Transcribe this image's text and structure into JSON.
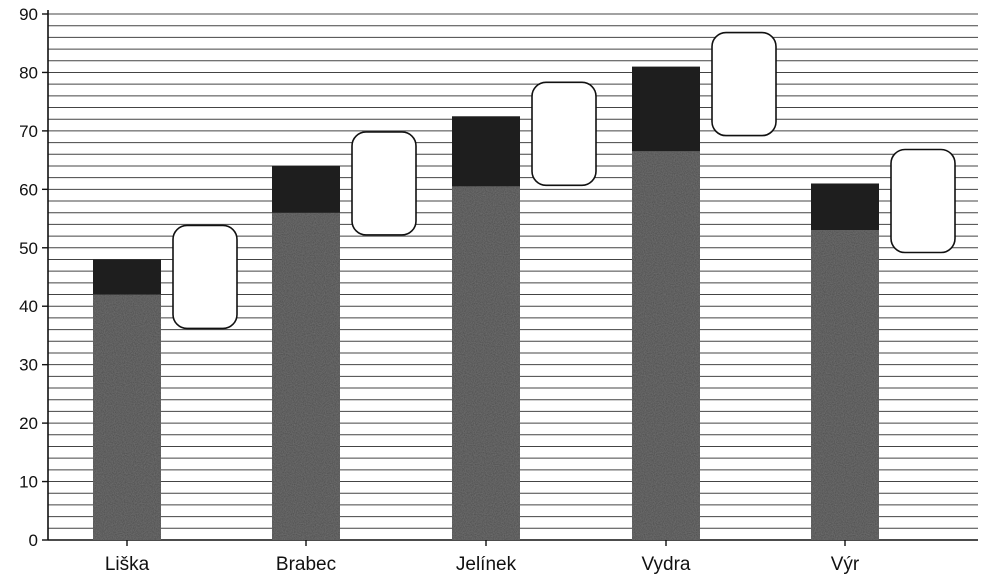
{
  "chart_data": {
    "type": "bar",
    "stacked": true,
    "categories": [
      "Liška",
      "Brabec",
      "Jelínek",
      "Vydra",
      "Výr"
    ],
    "series": [
      {
        "values": [
          42,
          56,
          60.5,
          66.5,
          53
        ],
        "color": "#4a4a4a"
      },
      {
        "values": [
          6,
          8,
          12,
          14.5,
          8
        ],
        "color": "#1e1e1e"
      }
    ],
    "totals": [
      48,
      64,
      72.5,
      81,
      61
    ],
    "blank_label_boxes": 5,
    "ylim": [
      0,
      90
    ],
    "yticks": [
      0,
      10,
      20,
      30,
      40,
      50,
      60,
      70,
      80,
      90
    ],
    "minor_gridline_step": 2,
    "grid": true,
    "title": "",
    "xlabel": "",
    "ylabel": ""
  }
}
